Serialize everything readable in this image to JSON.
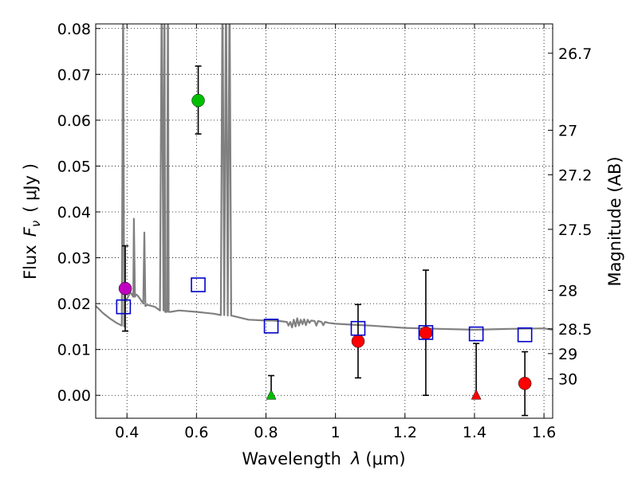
{
  "chart_data": {
    "type": "scatter",
    "title": "",
    "xlabel_prefix": "Wavelength",
    "xlabel_symbol": "λ",
    "xlabel_unit": "(μm)",
    "ylabel_left_prefix": "Flux",
    "ylabel_left_symbol": "F",
    "ylabel_left_sub": "ν",
    "ylabel_left_unit": "( μJy )",
    "ylabel_right": "Magnitude (AB)",
    "xlim": [
      0.31,
      1.625
    ],
    "ylim": [
      -0.005,
      0.081
    ],
    "grid": true,
    "x_ticks": [
      0.4,
      0.6,
      0.8,
      1.0,
      1.2,
      1.4,
      1.6
    ],
    "x_tick_labels": [
      "0.4",
      "0.6",
      "0.8",
      "1",
      "1.2",
      "1.4",
      "1.6"
    ],
    "y_ticks": [
      0.0,
      0.01,
      0.02,
      0.03,
      0.04,
      0.05,
      0.06,
      0.07,
      0.08
    ],
    "y_tick_labels": [
      "0.00",
      "0.01",
      "0.02",
      "0.03",
      "0.04",
      "0.05",
      "0.06",
      "0.07",
      "0.08"
    ],
    "right_ticks": [
      {
        "label": "26.7",
        "flux": 0.0746
      },
      {
        "label": "27",
        "flux": 0.0578
      },
      {
        "label": "27.2",
        "flux": 0.0481
      },
      {
        "label": "27.5",
        "flux": 0.0362
      },
      {
        "label": "28",
        "flux": 0.0229
      },
      {
        "label": "28.5",
        "flux": 0.0145
      },
      {
        "label": "29",
        "flux": 0.0091
      },
      {
        "label": "30",
        "flux": 0.0036
      }
    ],
    "template_spectrum": {
      "name": "model SED",
      "color": "#808080",
      "x": [
        0.31,
        0.33,
        0.35,
        0.37,
        0.385,
        0.389,
        0.392,
        0.395,
        0.4,
        0.41,
        0.418,
        0.42,
        0.423,
        0.426,
        0.43,
        0.44,
        0.447,
        0.45,
        0.453,
        0.46,
        0.48,
        0.495,
        0.5,
        0.505,
        0.508,
        0.51,
        0.515,
        0.518,
        0.52,
        0.525,
        0.55,
        0.6,
        0.65,
        0.67,
        0.675,
        0.68,
        0.685,
        0.69,
        0.695,
        0.7,
        0.75,
        0.8,
        0.82,
        0.84,
        0.86,
        0.865,
        0.87,
        0.875,
        0.88,
        0.885,
        0.89,
        0.895,
        0.9,
        0.905,
        0.91,
        0.915,
        0.92,
        0.925,
        0.93,
        0.94,
        0.945,
        0.95,
        0.96,
        0.965,
        0.97,
        0.98,
        1.0,
        1.05,
        1.1,
        1.2,
        1.3,
        1.4,
        1.5,
        1.6,
        1.625
      ],
      "y": [
        0.0195,
        0.018,
        0.0168,
        0.0158,
        0.0152,
        0.09,
        0.015,
        0.0205,
        0.021,
        0.0225,
        0.0215,
        0.0385,
        0.0215,
        0.022,
        0.0218,
        0.0208,
        0.02,
        0.0355,
        0.0195,
        0.0197,
        0.0193,
        0.0185,
        0.09,
        0.0185,
        0.09,
        0.0182,
        0.0182,
        0.09,
        0.0182,
        0.0182,
        0.0185,
        0.0182,
        0.0178,
        0.0175,
        0.09,
        0.0175,
        0.09,
        0.0174,
        0.09,
        0.0174,
        0.0165,
        0.0163,
        0.0163,
        0.0162,
        0.016,
        0.0152,
        0.016,
        0.0148,
        0.0165,
        0.015,
        0.0168,
        0.0152,
        0.0165,
        0.0155,
        0.0166,
        0.0153,
        0.0165,
        0.0158,
        0.0163,
        0.0162,
        0.0152,
        0.0162,
        0.016,
        0.0153,
        0.016,
        0.0158,
        0.0156,
        0.0154,
        0.0152,
        0.0147,
        0.0145,
        0.0143,
        0.0145,
        0.0146,
        0.0143
      ]
    },
    "series": [
      {
        "name": "purple point",
        "marker": "circle",
        "color": "#bf00bf",
        "points": [
          {
            "x": 0.395,
            "y": 0.0233,
            "yerr": [
              0.0093,
              0.0093
            ]
          }
        ]
      },
      {
        "name": "green detection",
        "marker": "circle",
        "color": "#00bf00",
        "points": [
          {
            "x": 0.605,
            "y": 0.0643,
            "yerr": [
              0.0073,
              0.0075
            ]
          }
        ]
      },
      {
        "name": "green upper limit",
        "marker": "triangle",
        "color": "#00bf00",
        "points": [
          {
            "x": 0.815,
            "y": 0.0,
            "yerr": [
              0.0,
              0.0043
            ]
          }
        ]
      },
      {
        "name": "red detections",
        "marker": "circle",
        "color": "#ff0000",
        "points": [
          {
            "x": 1.065,
            "y": 0.0118,
            "yerr": [
              0.008,
              0.008
            ]
          },
          {
            "x": 1.26,
            "y": 0.0136,
            "yerr": [
              0.0136,
              0.0137
            ]
          },
          {
            "x": 1.545,
            "y": 0.0026,
            "yerr": [
              0.007,
              0.0069
            ]
          }
        ]
      },
      {
        "name": "red upper limit",
        "marker": "triangle",
        "color": "#ff0000",
        "points": [
          {
            "x": 1.405,
            "y": 0.0,
            "yerr": [
              0.0,
              0.0113
            ]
          }
        ]
      },
      {
        "name": "model photometry",
        "marker": "open-square",
        "color": "#0000cc",
        "points": [
          {
            "x": 0.39,
            "y": 0.0193
          },
          {
            "x": 0.605,
            "y": 0.0241
          },
          {
            "x": 0.815,
            "y": 0.0151
          },
          {
            "x": 1.065,
            "y": 0.0146
          },
          {
            "x": 1.26,
            "y": 0.0137
          },
          {
            "x": 1.405,
            "y": 0.0134
          },
          {
            "x": 1.545,
            "y": 0.0132
          }
        ]
      }
    ]
  }
}
